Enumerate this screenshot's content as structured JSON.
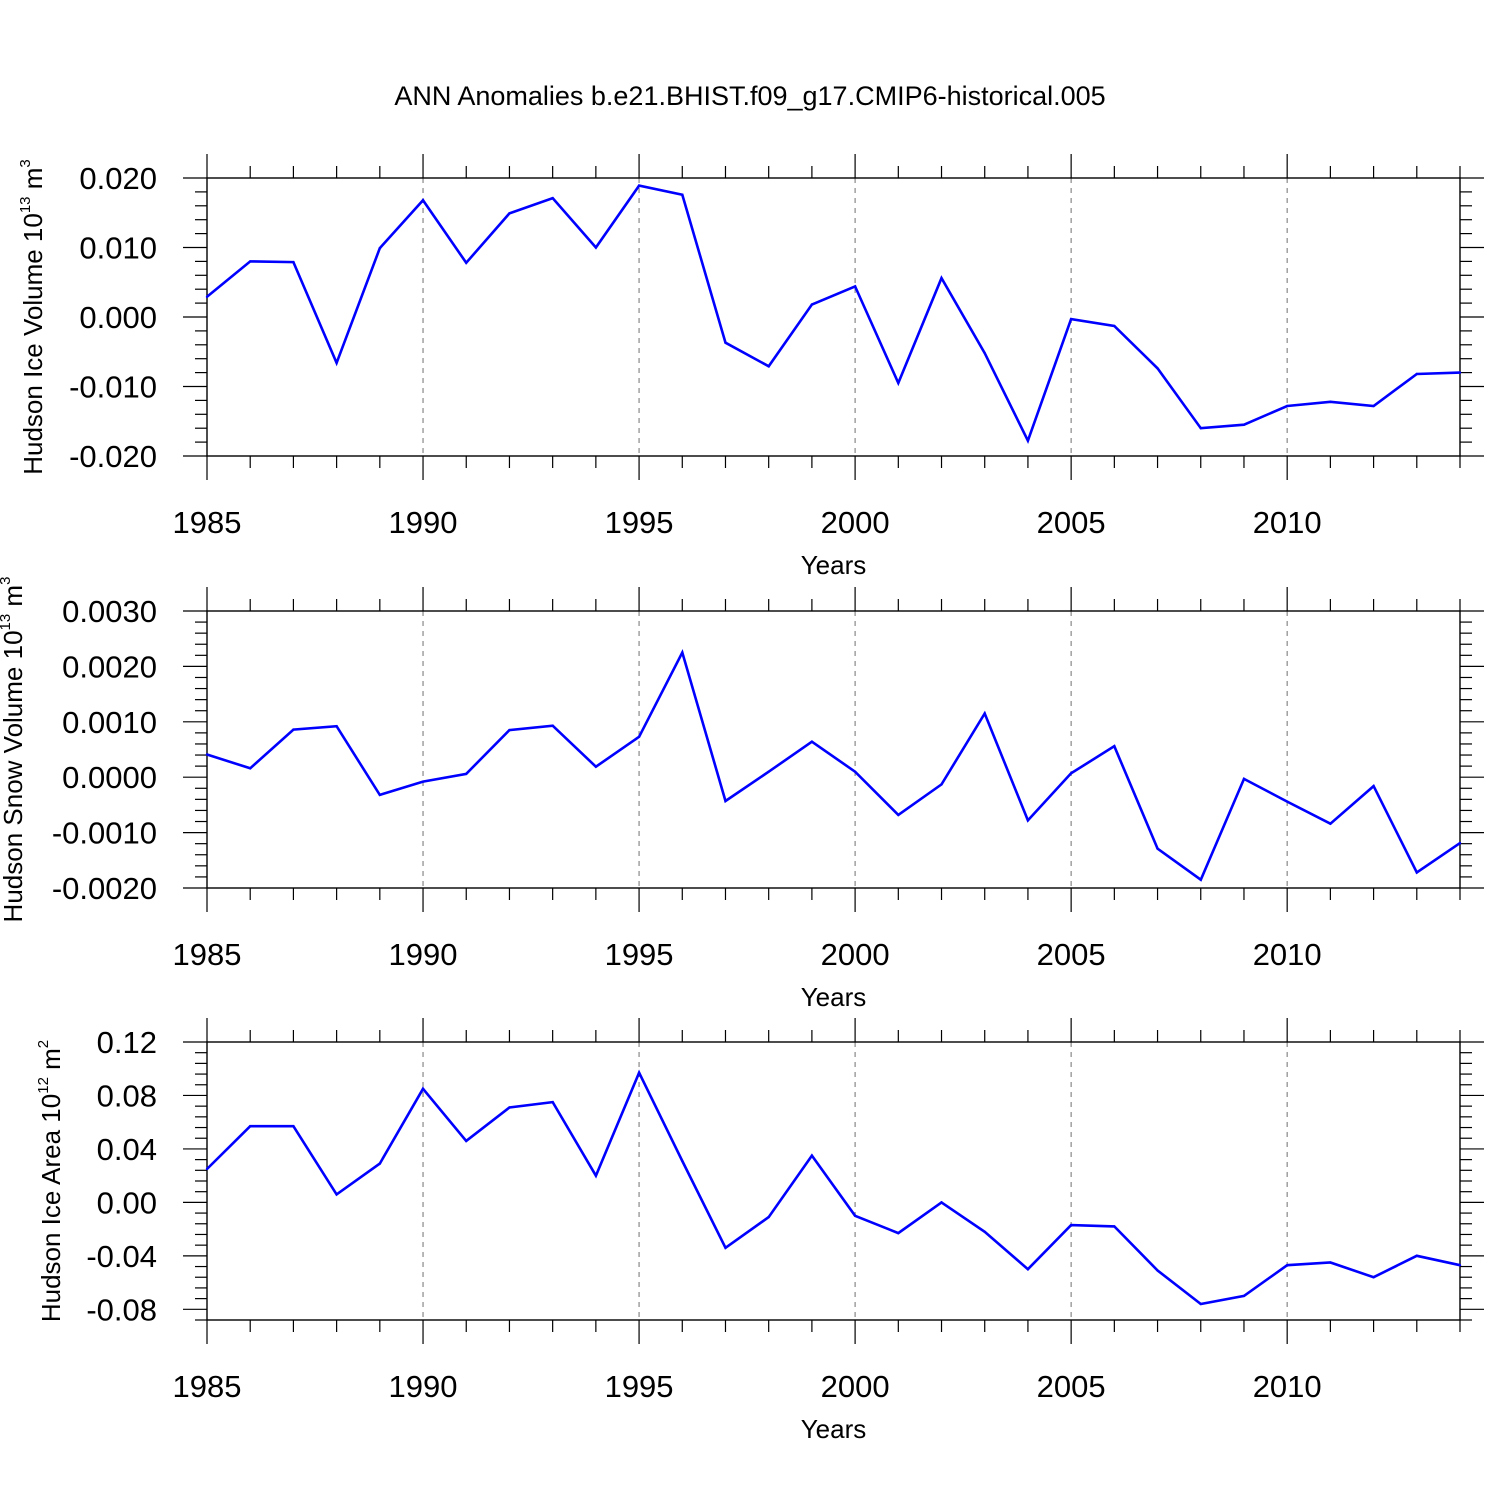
{
  "title": "ANN Anomalies b.e21.BHIST.f09_g17.CMIP6-historical.005",
  "line_color": "#0000ff",
  "chart_data": [
    {
      "type": "line",
      "ylabel": {
        "text": "Hudson Ice Volume 10",
        "exp": "13",
        "unit": " m",
        "unit_exp": "3"
      },
      "xlabel": "Years",
      "xlim": [
        1985,
        2014
      ],
      "ylim": [
        -0.02,
        0.02
      ],
      "x_ticks": [
        "1985",
        "1990",
        "1995",
        "2000",
        "2005",
        "2010"
      ],
      "y_ticks": [
        "-0.020",
        "-0.010",
        "0.000",
        "0.010",
        "0.020"
      ],
      "grid": "vertical dashed at major x ticks",
      "x": [
        1985,
        1986,
        1987,
        1988,
        1989,
        1990,
        1991,
        1992,
        1993,
        1994,
        1995,
        1996,
        1997,
        1998,
        1999,
        2000,
        2001,
        2002,
        2003,
        2004,
        2005,
        2006,
        2007,
        2008,
        2009,
        2010,
        2011,
        2012,
        2013,
        2014
      ],
      "values": [
        0.0029,
        0.008,
        0.0079,
        -0.0066,
        0.0099,
        0.0168,
        0.0078,
        0.0149,
        0.0171,
        0.01,
        0.0189,
        0.0176,
        -0.0037,
        -0.0071,
        0.0018,
        0.0044,
        -0.0095,
        0.0056,
        -0.0052,
        -0.0178,
        -0.0003,
        -0.0013,
        -0.0074,
        -0.016,
        -0.0155,
        -0.0128,
        -0.0122,
        -0.0128,
        -0.0082,
        -0.008
      ]
    },
    {
      "type": "line",
      "ylabel": {
        "text": "Hudson Snow Volume 10",
        "exp": "13",
        "unit": " m",
        "unit_exp": "3"
      },
      "xlabel": "Years",
      "xlim": [
        1985,
        2014
      ],
      "ylim": [
        -0.002,
        0.003
      ],
      "x_ticks": [
        "1985",
        "1990",
        "1995",
        "2000",
        "2005",
        "2010"
      ],
      "y_ticks": [
        "-0.0020",
        "-0.0010",
        "0.0000",
        "0.0010",
        "0.0020",
        "0.0030"
      ],
      "grid": "vertical dashed at major x ticks",
      "x": [
        1985,
        1986,
        1987,
        1988,
        1989,
        1990,
        1991,
        1992,
        1993,
        1994,
        1995,
        1996,
        1997,
        1998,
        1999,
        2000,
        2001,
        2002,
        2003,
        2004,
        2005,
        2006,
        2007,
        2008,
        2009,
        2010,
        2011,
        2012,
        2013,
        2014
      ],
      "values": [
        0.00041,
        0.00016,
        0.00086,
        0.00092,
        -0.00032,
        -8e-05,
        6e-05,
        0.00085,
        0.00093,
        0.00019,
        0.00073,
        0.00225,
        -0.00043,
        0.0001,
        0.00064,
        0.0001,
        -0.00068,
        -0.00013,
        0.00115,
        -0.00078,
        7e-05,
        0.00056,
        -0.00129,
        -0.00185,
        -3e-05,
        -0.00044,
        -0.00084,
        -0.00016,
        -0.00172,
        -0.00119
      ]
    },
    {
      "type": "line",
      "ylabel": {
        "text": "Hudson Ice Area 10",
        "exp": "12",
        "unit": " m",
        "unit_exp": "2"
      },
      "xlabel": "Years",
      "xlim": [
        1985,
        2014
      ],
      "ylim": [
        -0.088,
        0.12
      ],
      "x_ticks": [
        "1985",
        "1990",
        "1995",
        "2000",
        "2005",
        "2010"
      ],
      "y_ticks": [
        "-0.08",
        "-0.04",
        "0.00",
        "0.04",
        "0.08",
        "0.12"
      ],
      "grid": "vertical dashed at major x ticks",
      "x": [
        1985,
        1986,
        1987,
        1988,
        1989,
        1990,
        1991,
        1992,
        1993,
        1994,
        1995,
        1996,
        1997,
        1998,
        1999,
        2000,
        2001,
        2002,
        2003,
        2004,
        2005,
        2006,
        2007,
        2008,
        2009,
        2010,
        2011,
        2012,
        2013,
        2014
      ],
      "values": [
        0.025,
        0.057,
        0.057,
        0.006,
        0.029,
        0.085,
        0.046,
        0.071,
        0.075,
        0.02,
        0.097,
        0.031,
        -0.034,
        -0.011,
        0.035,
        -0.01,
        -0.023,
        0.0,
        -0.022,
        -0.05,
        -0.017,
        -0.018,
        -0.051,
        -0.076,
        -0.07,
        -0.047,
        -0.045,
        -0.056,
        -0.04,
        -0.047
      ]
    }
  ]
}
